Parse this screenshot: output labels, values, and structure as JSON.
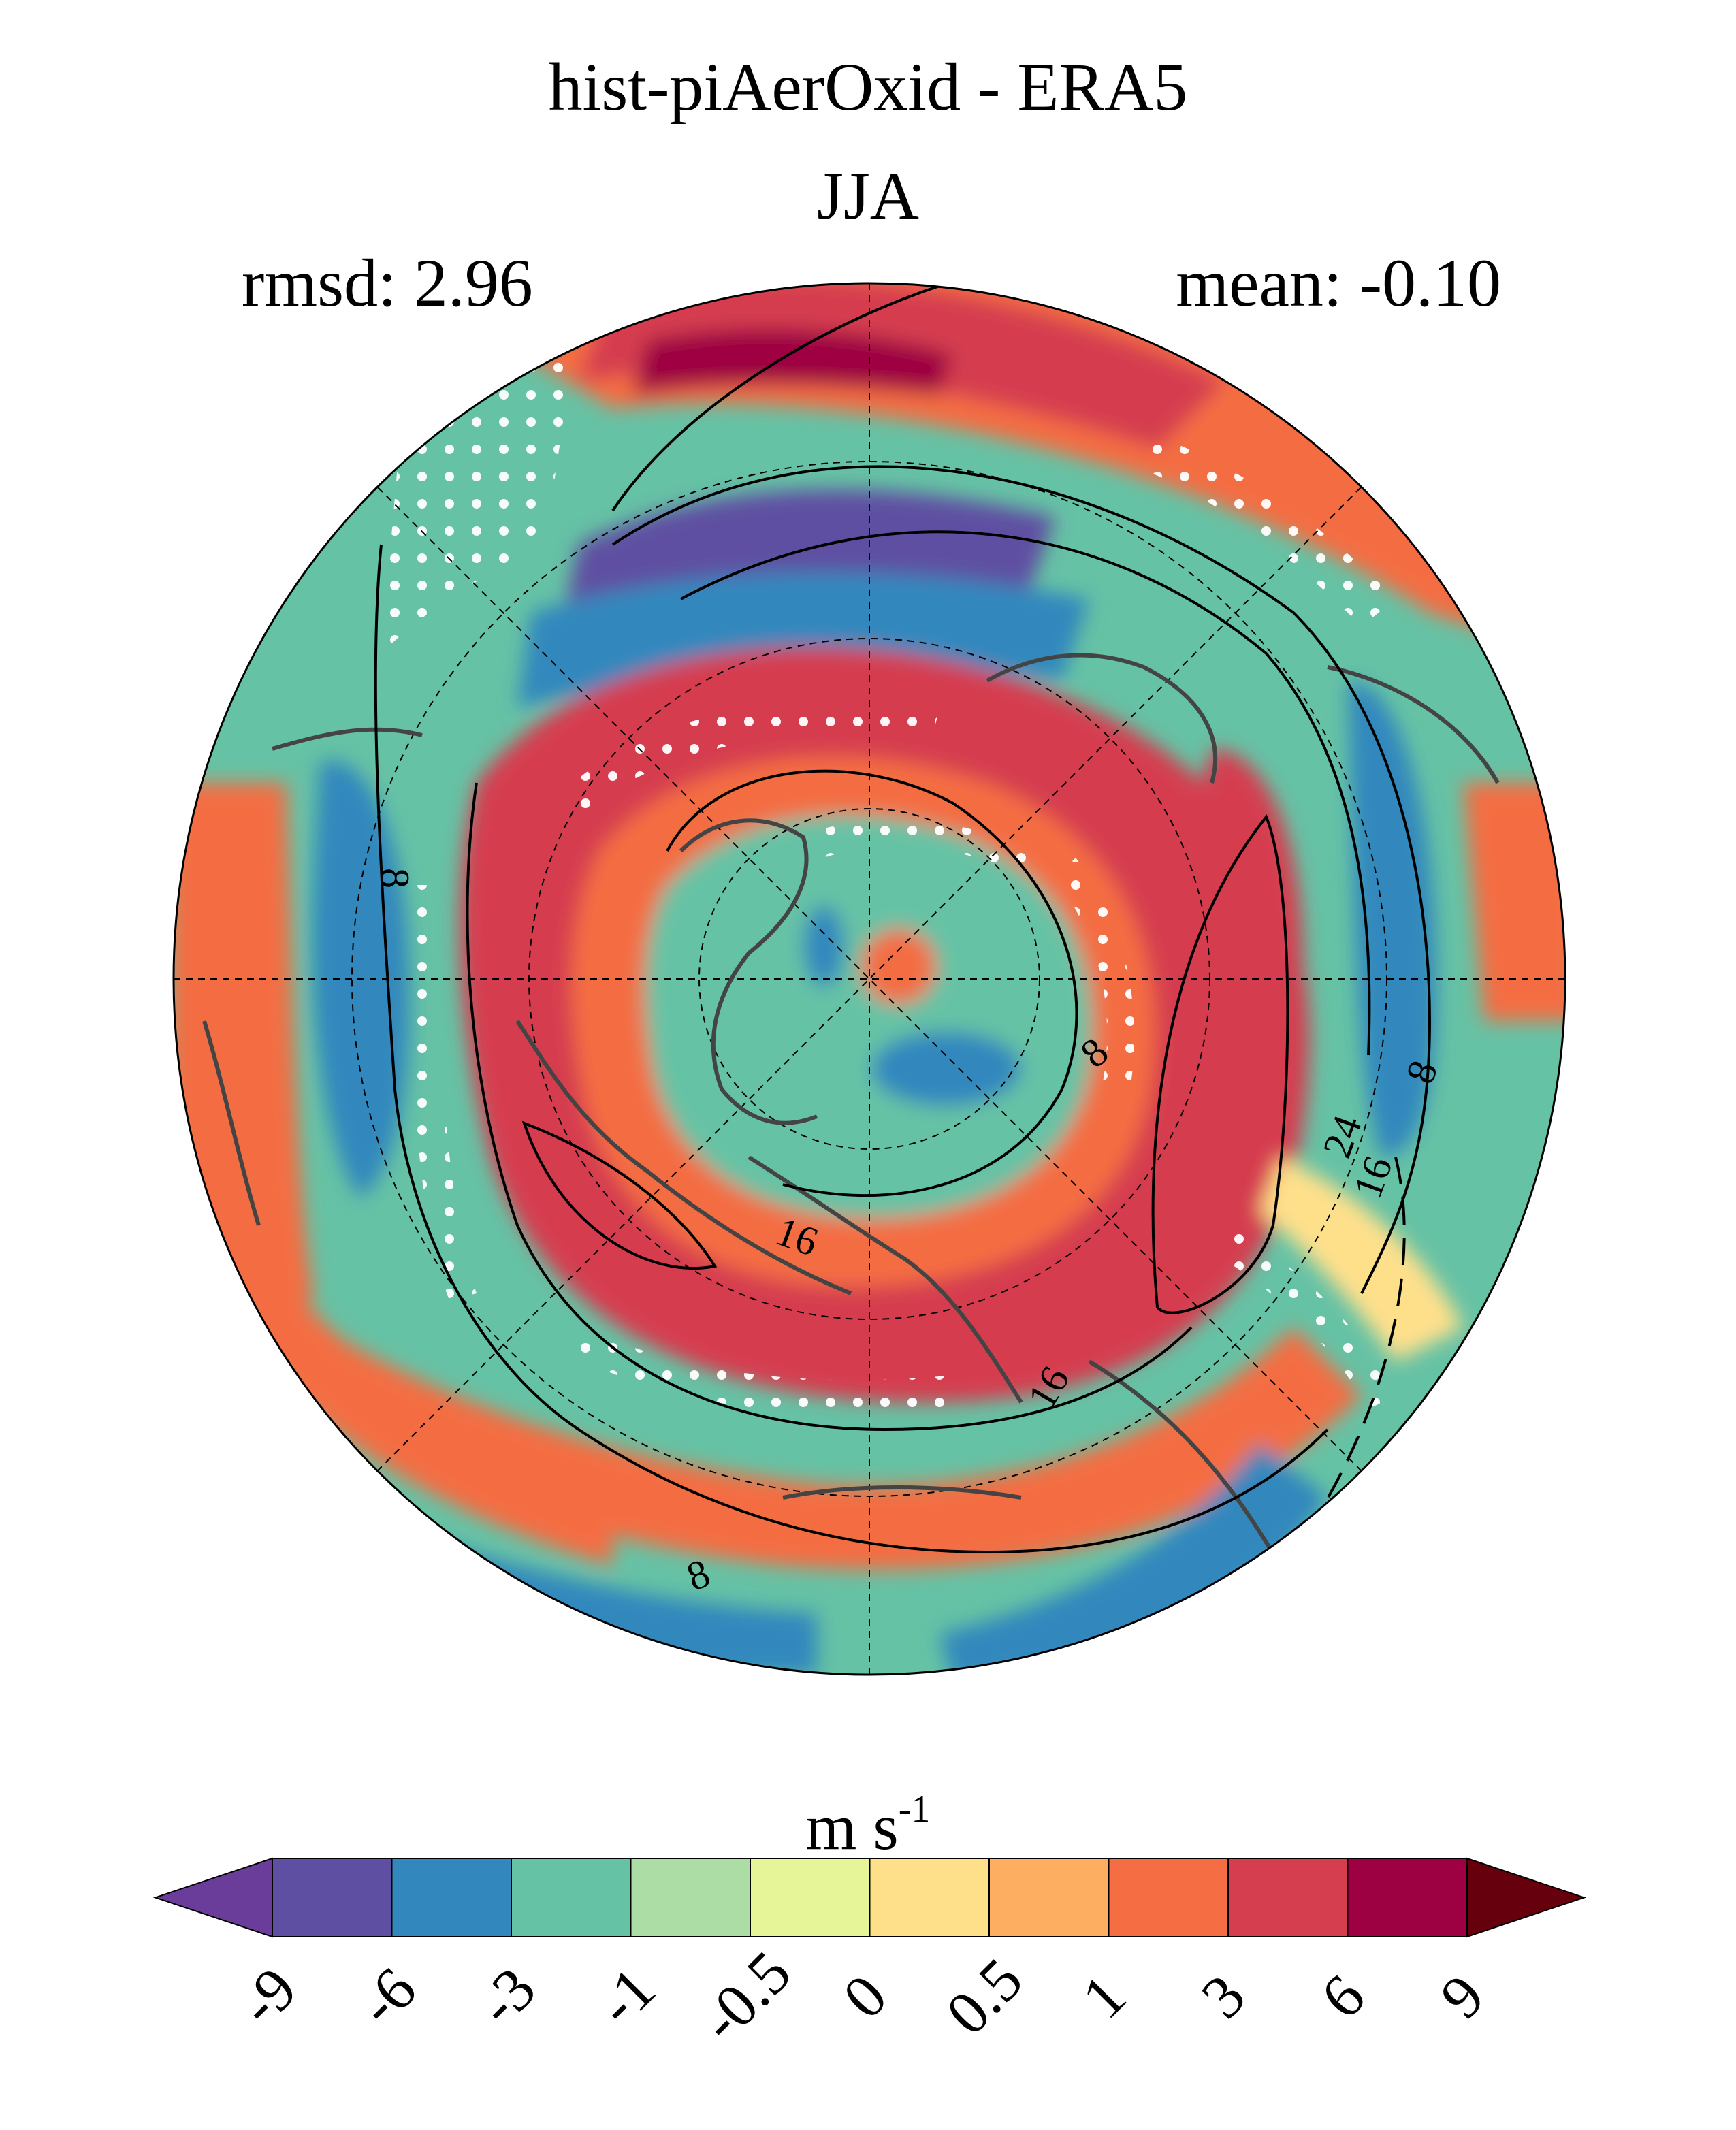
{
  "header": {
    "title": "hist-piAerOxid - ERA5",
    "season": "JJA",
    "rmsd_label": "rmsd: 2.96",
    "mean_label": "mean: -0.10"
  },
  "colorbar": {
    "units_base": "m s",
    "units_exp": "-1",
    "tick_labels": [
      "-9",
      "-6",
      "-3",
      "-1",
      "-0.5",
      "0",
      "0.5",
      "1",
      "3",
      "6",
      "9"
    ],
    "colors": [
      "#5e4fa2",
      "#3288bd",
      "#66c2a5",
      "#abdda4",
      "#e6f598",
      "#fee08b",
      "#fdae61",
      "#f46d43",
      "#d53e4f",
      "#9e0142"
    ],
    "under_color": "#6a3d9a",
    "over_color": "#67000d"
  },
  "map": {
    "projection": "north-polar-stereographic",
    "contour_labels": [
      "8",
      "8",
      "8",
      "16",
      "16",
      "16",
      "24",
      "8"
    ],
    "stippling": "white dots",
    "colors": {
      "ocean_base": "#66c2a5",
      "coast": "#444444"
    }
  }
}
